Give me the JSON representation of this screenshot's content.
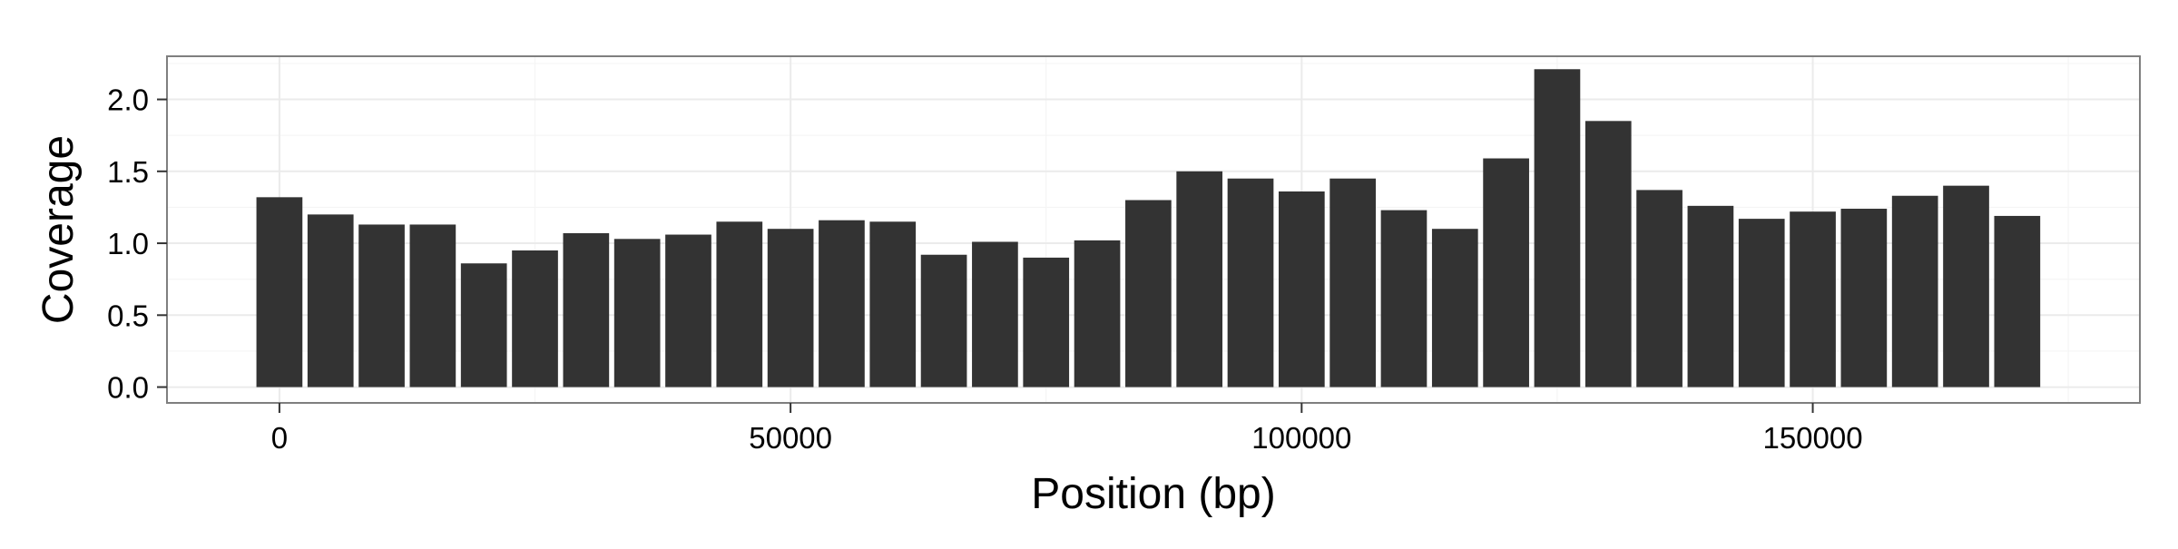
{
  "chart_data": {
    "type": "bar",
    "title": "",
    "xlabel": "Position (bp)",
    "ylabel": "Coverage",
    "xlim": [
      -11000,
      182000
    ],
    "ylim": [
      -0.11,
      2.3
    ],
    "x_ticks": [
      0,
      50000,
      100000,
      150000
    ],
    "x_tick_labels": [
      "0",
      "50000",
      "100000",
      "150000"
    ],
    "y_ticks": [
      0.0,
      0.5,
      1.0,
      1.5,
      2.0
    ],
    "y_tick_labels": [
      "0.0",
      "0.5",
      "1.0",
      "1.5",
      "2.0"
    ],
    "bin_width": 5000,
    "grid": true,
    "legend": "none",
    "colors": {
      "bar": "#333333",
      "panel_bg": "#ffffff",
      "panel_border": "#7f7f7f",
      "grid_major": "#ebebeb",
      "grid_minor": "#f5f5f5"
    },
    "x": [
      0,
      5000,
      10000,
      15000,
      20000,
      25000,
      30000,
      35000,
      40000,
      45000,
      50000,
      55000,
      60000,
      65000,
      70000,
      75000,
      80000,
      85000,
      90000,
      95000,
      100000,
      105000,
      110000,
      115000,
      120000,
      125000,
      130000,
      135000,
      140000,
      145000,
      150000,
      155000,
      160000,
      165000,
      170000
    ],
    "values": [
      1.32,
      1.2,
      1.13,
      1.13,
      0.86,
      0.95,
      1.07,
      1.03,
      1.06,
      1.15,
      1.1,
      1.16,
      1.15,
      0.92,
      1.01,
      0.9,
      1.02,
      1.3,
      1.5,
      1.45,
      1.36,
      1.45,
      1.23,
      1.1,
      1.59,
      2.21,
      1.85,
      1.37,
      1.26,
      1.17,
      1.22,
      1.24,
      1.33,
      1.4,
      1.19
    ]
  }
}
